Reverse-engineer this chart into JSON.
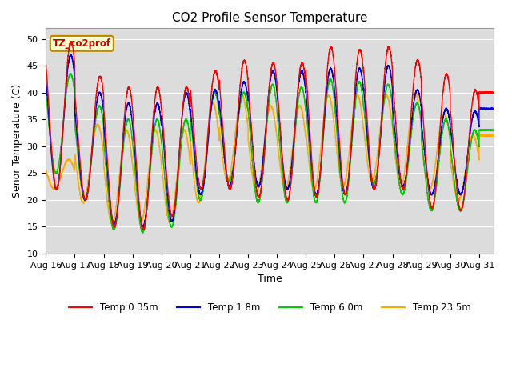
{
  "title": "CO2 Profile Sensor Temperature",
  "xlabel": "Time",
  "ylabel": "Senor Temperature (C)",
  "ylim": [
    10,
    52
  ],
  "yticks": [
    10,
    15,
    20,
    25,
    30,
    35,
    40,
    45,
    50
  ],
  "x_labels": [
    "Aug 16",
    "Aug 17",
    "Aug 18",
    "Aug 19",
    "Aug 20",
    "Aug 21",
    "Aug 22",
    "Aug 23",
    "Aug 24",
    "Aug 25",
    "Aug 26",
    "Aug 27",
    "Aug 28",
    "Aug 29",
    "Aug 30",
    "Aug 31"
  ],
  "annotation_text": "TZ_co2prof",
  "colors": {
    "red": "#ff0000",
    "blue": "#0000dd",
    "green": "#00cc00",
    "orange": "#ffaa00"
  },
  "legend_labels": [
    "Temp 0.35m",
    "Temp 1.8m",
    "Temp 6.0m",
    "Temp 23.5m"
  ],
  "bg_color": "#dcdcdc",
  "title_fontsize": 11,
  "axis_fontsize": 9,
  "tick_fontsize": 8
}
